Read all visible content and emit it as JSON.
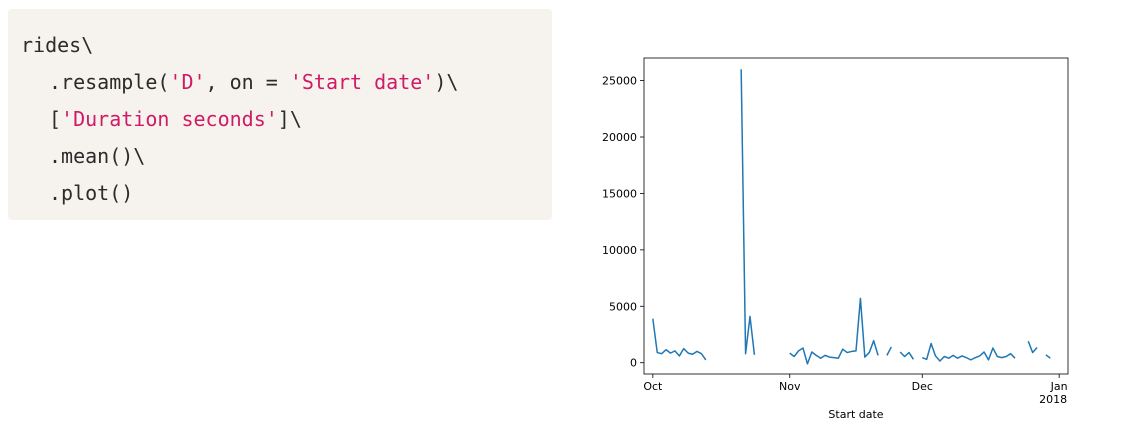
{
  "code": {
    "line1": "rides\\",
    "line2_prefix": ".resample(",
    "line2_arg1": "'D'",
    "line2_mid": ", on = ",
    "line2_arg2": "'Start date'",
    "line2_suffix": ")\\",
    "line3_prefix": "[",
    "line3_key": "'Duration seconds'",
    "line3_suffix": "]\\",
    "line4": ".mean()\\",
    "line5": ".plot()"
  },
  "chart_data": {
    "type": "line",
    "xlabel": "Start date",
    "ylabel": "",
    "title": "",
    "ylim": [
      -1000,
      27000
    ],
    "xlim": [
      "2017-09-29",
      "2018-01-03"
    ],
    "y_ticks": [
      {
        "value": 0,
        "label": "0"
      },
      {
        "value": 5000,
        "label": "5000"
      },
      {
        "value": 10000,
        "label": "10000"
      },
      {
        "value": 15000,
        "label": "15000"
      },
      {
        "value": 20000,
        "label": "20000"
      },
      {
        "value": 25000,
        "label": "25000"
      }
    ],
    "x_ticks": [
      {
        "date": "2017-10-01",
        "label": "Oct",
        "label2": ""
      },
      {
        "date": "2017-11-01",
        "label": "Nov",
        "label2": ""
      },
      {
        "date": "2017-12-01",
        "label": "Dec",
        "label2": ""
      },
      {
        "date": "2018-01-01",
        "label": "Jan",
        "label2": "2018"
      }
    ],
    "color": "#1f77b4",
    "segments": [
      [
        [
          "2017-10-01",
          3900
        ],
        [
          "2017-10-02",
          900
        ],
        [
          "2017-10-03",
          800
        ],
        [
          "2017-10-04",
          1150
        ],
        [
          "2017-10-05",
          850
        ],
        [
          "2017-10-06",
          1050
        ],
        [
          "2017-10-07",
          600
        ],
        [
          "2017-10-08",
          1250
        ],
        [
          "2017-10-09",
          850
        ],
        [
          "2017-10-10",
          750
        ],
        [
          "2017-10-11",
          1000
        ],
        [
          "2017-10-12",
          800
        ],
        [
          "2017-10-13",
          250
        ]
      ],
      [
        [
          "2017-10-21",
          26000
        ],
        [
          "2017-10-22",
          800
        ],
        [
          "2017-10-23",
          4100
        ],
        [
          "2017-10-24",
          700
        ]
      ],
      [
        [
          "2017-11-01",
          850
        ],
        [
          "2017-11-02",
          550
        ],
        [
          "2017-11-03",
          1050
        ],
        [
          "2017-11-04",
          1300
        ],
        [
          "2017-11-05",
          -100
        ],
        [
          "2017-11-06",
          950
        ],
        [
          "2017-11-07",
          650
        ],
        [
          "2017-11-08",
          400
        ],
        [
          "2017-11-09",
          650
        ],
        [
          "2017-11-10",
          500
        ],
        [
          "2017-11-11",
          450
        ],
        [
          "2017-11-12",
          400
        ],
        [
          "2017-11-13",
          1200
        ],
        [
          "2017-11-14",
          900
        ],
        [
          "2017-11-15",
          1000
        ],
        [
          "2017-11-16",
          1050
        ],
        [
          "2017-11-17",
          5700
        ],
        [
          "2017-11-18",
          500
        ],
        [
          "2017-11-19",
          900
        ],
        [
          "2017-11-20",
          1950
        ],
        [
          "2017-11-21",
          650
        ]
      ],
      [
        [
          "2017-11-23",
          650
        ],
        [
          "2017-11-24",
          1400
        ]
      ],
      [
        [
          "2017-11-26",
          950
        ],
        [
          "2017-11-27",
          550
        ],
        [
          "2017-11-28",
          900
        ],
        [
          "2017-11-29",
          300
        ]
      ],
      [
        [
          "2017-12-01",
          450
        ],
        [
          "2017-12-02",
          300
        ],
        [
          "2017-12-03",
          1700
        ],
        [
          "2017-12-04",
          600
        ],
        [
          "2017-12-05",
          150
        ],
        [
          "2017-12-06",
          550
        ],
        [
          "2017-12-07",
          400
        ],
        [
          "2017-12-08",
          650
        ],
        [
          "2017-12-09",
          400
        ],
        [
          "2017-12-10",
          600
        ],
        [
          "2017-12-11",
          450
        ],
        [
          "2017-12-12",
          250
        ],
        [
          "2017-12-13",
          450
        ],
        [
          "2017-12-14",
          600
        ],
        [
          "2017-12-15",
          950
        ],
        [
          "2017-12-16",
          250
        ],
        [
          "2017-12-17",
          1300
        ],
        [
          "2017-12-18",
          550
        ],
        [
          "2017-12-19",
          450
        ],
        [
          "2017-12-20",
          550
        ],
        [
          "2017-12-21",
          800
        ],
        [
          "2017-12-22",
          400
        ]
      ],
      [
        [
          "2017-12-25",
          1900
        ],
        [
          "2017-12-26",
          900
        ],
        [
          "2017-12-27",
          1350
        ]
      ],
      [
        [
          "2017-12-29",
          700
        ],
        [
          "2017-12-30",
          400
        ]
      ]
    ]
  }
}
